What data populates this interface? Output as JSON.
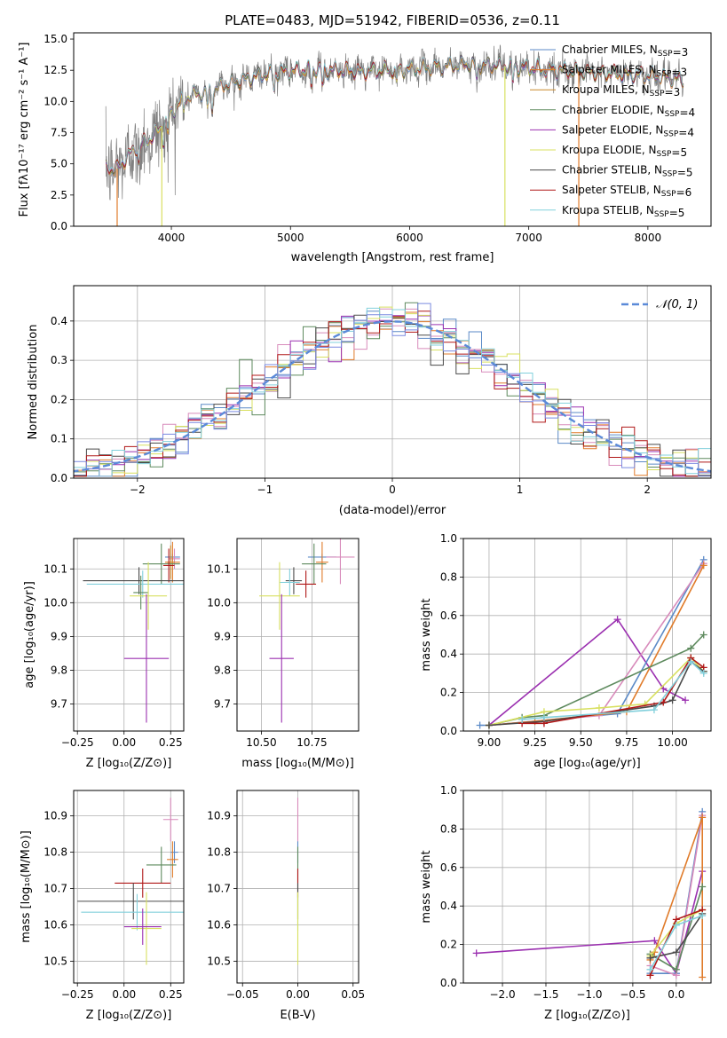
{
  "chart_data": [
    {
      "type": "line",
      "title": "PLATE=0483, MJD=51942, FIBERID=0536, z=0.11",
      "xlabel": "wavelength [Angstrom, rest frame]",
      "ylabel": "Flux [fλ10⁻¹⁷ erg cm⁻² s⁻¹ A⁻¹]",
      "xlim": [
        3180,
        8530
      ],
      "ylim": [
        0,
        15.5
      ],
      "xticks": [
        4000,
        5000,
        6000,
        7000,
        8000
      ],
      "yticks": [
        0.0,
        2.5,
        5.0,
        7.5,
        10.0,
        12.5,
        15.0
      ],
      "data_range": [
        3450,
        8300
      ],
      "continuum": {
        "x": [
          3450,
          3550,
          3650,
          3750,
          3850,
          3950,
          4100,
          4300,
          4500,
          4800,
          5200,
          5600,
          6000,
          6500,
          7000,
          7500,
          8000,
          8300
        ],
        "y": [
          4.6,
          4.6,
          5.8,
          6.6,
          7.2,
          8.4,
          10.3,
          10.8,
          11.5,
          12.2,
          12.6,
          12.4,
          12.6,
          13.0,
          12.7,
          12.3,
          12.1,
          11.7
        ]
      },
      "legend_position": "upper right",
      "series": [
        {
          "name": "Chabrier MILES, N<sub>SSP</sub>=3",
          "color": "#5b8ac7"
        },
        {
          "name": "Salpeter MILES, N<sub>SSP</sub>=3",
          "color": "#e07b2a"
        },
        {
          "name": "Kroupa MILES, N<sub>SSP</sub>=3",
          "color": "#c8892a"
        },
        {
          "name": "Chabrier ELODIE, N<sub>SSP</sub>=4",
          "color": "#5e8a5e"
        },
        {
          "name": "Salpeter ELODIE, N<sub>SSP</sub>=4",
          "color": "#9b30b0"
        },
        {
          "name": "Kroupa ELODIE, N<sub>SSP</sub>=5",
          "color": "#d8e060"
        },
        {
          "name": "Chabrier STELIB, N<sub>SSP</sub>=5",
          "color": "#4a4a4a"
        },
        {
          "name": "Salpeter STELIB, N<sub>SSP</sub>=6",
          "color": "#b01818"
        },
        {
          "name": "Kroupa STELIB, N<sub>SSP</sub>=5",
          "color": "#82d0dc"
        }
      ],
      "observed_color": "#7f7f7f"
    },
    {
      "type": "histogram",
      "xlabel": "(data-model)/error",
      "ylabel": "Normed distribution",
      "xlim": [
        -2.5,
        2.5
      ],
      "ylim": [
        0,
        0.49
      ],
      "xticks": [
        -2,
        -1,
        0,
        1,
        2
      ],
      "yticks": [
        0.0,
        0.1,
        0.2,
        0.3,
        0.4
      ],
      "grid": true,
      "bin_width": 0.1,
      "legend": [
        "𝒩(0, 1)"
      ],
      "legend_position": "upper right",
      "reference_curve": {
        "name": "𝒩(0, 1)",
        "mean": 0,
        "sigma": 1,
        "color": "#5b8ad8",
        "style": "dashed"
      },
      "series_colors": [
        "#5b8ac7",
        "#e07b2a",
        "#d88bbb",
        "#5e8a5e",
        "#9b30b0",
        "#d8e060",
        "#4a4a4a",
        "#b01818",
        "#82d0dc",
        "#7a8ae0"
      ]
    },
    {
      "type": "scatter",
      "xlabel": "Z [log₁₀(Z/Z⊙)]",
      "ylabel": "age  [log₁₀(age/yr)]",
      "xlim": [
        -0.27,
        0.32
      ],
      "ylim": [
        9.62,
        10.19
      ],
      "xticks": [
        -0.25,
        0.0,
        0.25
      ],
      "yticks": [
        9.7,
        9.8,
        9.9,
        10.0,
        10.1
      ],
      "grid": true,
      "points": [
        {
          "x": 0.26,
          "y": 10.135,
          "xerr": 0.04,
          "yerr": 0.01,
          "color": "#5b8ac7"
        },
        {
          "x": 0.27,
          "y": 10.13,
          "xerr": 0.03,
          "yerr": 0.03,
          "color": "#d88bbb"
        },
        {
          "x": 0.26,
          "y": 10.12,
          "xerr": 0.04,
          "yerr": 0.06,
          "color": "#e07b2a"
        },
        {
          "x": 0.25,
          "y": 10.12,
          "xerr": 0.02,
          "yerr": 0.05,
          "color": "#c8892a"
        },
        {
          "x": 0.2,
          "y": 10.115,
          "xerr": 0.1,
          "yerr": 0.06,
          "color": "#5e8a5e"
        },
        {
          "x": 0.24,
          "y": 10.11,
          "xerr": 0.03,
          "yerr": 0.05,
          "color": "#b01818"
        },
        {
          "x": 0.08,
          "y": 10.065,
          "xerr": 0.3,
          "yerr": 0.04,
          "color": "#4a4a4a"
        },
        {
          "x": 0.1,
          "y": 10.055,
          "xerr": 0.3,
          "yerr": 0.04,
          "color": "#82d0dc"
        },
        {
          "x": 0.09,
          "y": 10.03,
          "xerr": 0.04,
          "yerr": 0.05,
          "color": "#5e8a5e"
        },
        {
          "x": 0.13,
          "y": 10.02,
          "xerr": 0.1,
          "yerr": 0.1,
          "color": "#d8e060"
        },
        {
          "x": 0.12,
          "y": 9.835,
          "xerr": 0.12,
          "yerr": 0.19,
          "color": "#9b30b0"
        }
      ]
    },
    {
      "type": "scatter",
      "xlabel": "mass [log₁₀(M/M⊙)]",
      "ylabel": "",
      "xlim": [
        10.38,
        10.98
      ],
      "ylim": [
        9.62,
        10.19
      ],
      "xticks": [
        10.5,
        10.75
      ],
      "yticks": [
        9.7,
        9.8,
        9.9,
        10.0,
        10.1
      ],
      "grid": true,
      "points": [
        {
          "x": 10.8,
          "y": 10.135,
          "xerr": 0.07,
          "yerr": 0.01,
          "color": "#5b8ac7"
        },
        {
          "x": 10.89,
          "y": 10.135,
          "xerr": 0.07,
          "yerr": 0.08,
          "color": "#d88bbb"
        },
        {
          "x": 10.8,
          "y": 10.12,
          "xerr": 0.03,
          "yerr": 0.06,
          "color": "#e07b2a"
        },
        {
          "x": 10.76,
          "y": 10.115,
          "xerr": 0.06,
          "yerr": 0.06,
          "color": "#5e8a5e"
        },
        {
          "x": 10.72,
          "y": 10.055,
          "xerr": 0.05,
          "yerr": 0.04,
          "color": "#b01818"
        },
        {
          "x": 10.66,
          "y": 10.065,
          "xerr": 0.04,
          "yerr": 0.04,
          "color": "#4a4a4a"
        },
        {
          "x": 10.64,
          "y": 10.06,
          "xerr": 0.05,
          "yerr": 0.04,
          "color": "#82d0dc"
        },
        {
          "x": 10.59,
          "y": 10.02,
          "xerr": 0.1,
          "yerr": 0.1,
          "color": "#d8e060"
        },
        {
          "x": 10.6,
          "y": 9.835,
          "xerr": 0.06,
          "yerr": 0.19,
          "color": "#9b30b0"
        }
      ]
    },
    {
      "type": "line",
      "xlabel": "age  [log₁₀(age/yr)]",
      "ylabel": "mass weight",
      "xlim": [
        8.86,
        10.21
      ],
      "ylim": [
        0,
        1.0
      ],
      "xticks": [
        9.0,
        9.25,
        9.5,
        9.75,
        10.0
      ],
      "yticks": [
        0.0,
        0.2,
        0.4,
        0.6,
        0.8,
        1.0
      ],
      "grid": true,
      "series": [
        {
          "color": "#9b30b0",
          "x": [
            9.0,
            9.7,
            9.95,
            10.07
          ],
          "y": [
            0.03,
            0.58,
            0.22,
            0.16
          ]
        },
        {
          "color": "#5b8ac7",
          "x": [
            8.95,
            9.0,
            9.7,
            10.17
          ],
          "y": [
            0.03,
            0.03,
            0.09,
            0.89
          ]
        },
        {
          "color": "#d88bbb",
          "x": [
            9.0,
            9.6,
            10.17
          ],
          "y": [
            0.03,
            0.08,
            0.87
          ]
        },
        {
          "color": "#e07b2a",
          "x": [
            9.0,
            9.25,
            9.75,
            10.17
          ],
          "y": [
            0.03,
            0.05,
            0.1,
            0.86
          ]
        },
        {
          "color": "#5e8a5e",
          "x": [
            9.0,
            9.18,
            9.3,
            10.1,
            10.17
          ],
          "y": [
            0.03,
            0.07,
            0.08,
            0.43,
            0.5
          ]
        },
        {
          "color": "#d8e060",
          "x": [
            9.0,
            9.3,
            9.6,
            9.85,
            10.1,
            10.17
          ],
          "y": [
            0.03,
            0.1,
            0.12,
            0.14,
            0.38,
            0.31
          ]
        },
        {
          "color": "#4a4a4a",
          "x": [
            9.0,
            9.3,
            9.9,
            10.0,
            10.1,
            10.17
          ],
          "y": [
            0.03,
            0.05,
            0.13,
            0.16,
            0.36,
            0.31
          ]
        },
        {
          "color": "#b01818",
          "x": [
            9.18,
            9.3,
            9.95,
            10.1,
            10.17
          ],
          "y": [
            0.04,
            0.04,
            0.15,
            0.38,
            0.33
          ]
        },
        {
          "color": "#82d0dc",
          "x": [
            9.18,
            9.3,
            9.9,
            10.1,
            10.17
          ],
          "y": [
            0.06,
            0.07,
            0.11,
            0.36,
            0.3
          ]
        }
      ]
    },
    {
      "type": "scatter",
      "xlabel": "Z [log₁₀(Z/Z⊙)]",
      "ylabel": "mass [log₁₀(M/M⊙)]",
      "xlim": [
        -0.27,
        0.32
      ],
      "ylim": [
        10.44,
        10.97
      ],
      "xticks": [
        -0.25,
        0.0,
        0.25
      ],
      "yticks": [
        10.5,
        10.6,
        10.7,
        10.8,
        10.9
      ],
      "grid": true,
      "points": [
        {
          "x": 0.27,
          "y": 10.8,
          "xerr": 0.02,
          "yerr": 0.03,
          "color": "#5b8ac7"
        },
        {
          "x": 0.25,
          "y": 10.89,
          "xerr": 0.04,
          "yerr": 0.06,
          "color": "#d88bbb"
        },
        {
          "x": 0.26,
          "y": 10.78,
          "xerr": 0.03,
          "yerr": 0.05,
          "color": "#e07b2a"
        },
        {
          "x": 0.2,
          "y": 10.765,
          "xerr": 0.08,
          "yerr": 0.05,
          "color": "#5e8a5e"
        },
        {
          "x": 0.1,
          "y": 10.715,
          "xerr": 0.15,
          "yerr": 0.04,
          "color": "#b01818"
        },
        {
          "x": 0.05,
          "y": 10.665,
          "xerr": 0.3,
          "yerr": 0.05,
          "color": "#4a4a4a"
        },
        {
          "x": 0.07,
          "y": 10.635,
          "xerr": 0.3,
          "yerr": 0.05,
          "color": "#82d0dc"
        },
        {
          "x": 0.12,
          "y": 10.59,
          "xerr": 0.08,
          "yerr": 0.1,
          "color": "#d8e060"
        },
        {
          "x": 0.1,
          "y": 10.595,
          "xerr": 0.1,
          "yerr": 0.05,
          "color": "#9b30b0"
        }
      ]
    },
    {
      "type": "scatter",
      "xlabel": "E(B-V)",
      "ylabel": "",
      "xlim": [
        -0.055,
        0.055
      ],
      "ylim": [
        10.44,
        10.97
      ],
      "xticks": [
        -0.05,
        0.0,
        0.05
      ],
      "yticks": [
        10.5,
        10.6,
        10.7,
        10.8,
        10.9
      ],
      "grid": true,
      "points": [
        {
          "x": 0.0,
          "y": 10.89,
          "xerr": 0,
          "yerr": 0.06,
          "color": "#d88bbb"
        },
        {
          "x": 0.0,
          "y": 10.8,
          "xerr": 0,
          "yerr": 0.03,
          "color": "#5b8ac7"
        },
        {
          "x": 0.0,
          "y": 10.765,
          "xerr": 0,
          "yerr": 0.05,
          "color": "#5e8a5e"
        },
        {
          "x": 0.0,
          "y": 10.715,
          "xerr": 0,
          "yerr": 0.04,
          "color": "#b01818"
        },
        {
          "x": 0.0,
          "y": 10.665,
          "xerr": 0,
          "yerr": 0.05,
          "color": "#4a4a4a"
        },
        {
          "x": 0.0,
          "y": 10.635,
          "xerr": 0,
          "yerr": 0.05,
          "color": "#82d0dc"
        },
        {
          "x": 0.0,
          "y": 10.59,
          "xerr": 0,
          "yerr": 0.1,
          "color": "#d8e060"
        }
      ]
    },
    {
      "type": "line",
      "xlabel": "Z [log₁₀(Z/Z⊙)]",
      "ylabel": "mass weight",
      "xlim": [
        -2.45,
        0.4
      ],
      "ylim": [
        0,
        1.0
      ],
      "xticks": [
        -2.0,
        -1.5,
        -1.0,
        -0.5,
        0.0
      ],
      "yticks": [
        0.0,
        0.2,
        0.4,
        0.6,
        0.8,
        1.0
      ],
      "grid": true,
      "series": [
        {
          "color": "#9b30b0",
          "x": [
            -2.3,
            -0.25,
            0.0,
            0.3
          ],
          "y": [
            0.155,
            0.22,
            0.05,
            0.58
          ]
        },
        {
          "color": "#5b8ac7",
          "x": [
            -0.3,
            0.0,
            0.3
          ],
          "y": [
            0.05,
            0.05,
            0.89
          ]
        },
        {
          "color": "#d88bbb",
          "x": [
            -0.3,
            0.0,
            0.3
          ],
          "y": [
            0.09,
            0.04,
            0.87
          ]
        },
        {
          "color": "#e07b2a",
          "x": [
            -0.3,
            -0.25,
            0.3,
            0.3
          ],
          "y": [
            0.12,
            0.16,
            0.86,
            0.03
          ]
        },
        {
          "color": "#5e8a5e",
          "x": [
            -0.3,
            0.0,
            0.3
          ],
          "y": [
            0.15,
            0.07,
            0.5
          ]
        },
        {
          "color": "#d8e060",
          "x": [
            -0.3,
            0.0,
            0.3
          ],
          "y": [
            0.14,
            0.31,
            0.38
          ]
        },
        {
          "color": "#4a4a4a",
          "x": [
            -0.3,
            0.0,
            0.3
          ],
          "y": [
            0.13,
            0.16,
            0.36
          ]
        },
        {
          "color": "#b01818",
          "x": [
            -0.3,
            0.0,
            0.3
          ],
          "y": [
            0.04,
            0.33,
            0.38
          ]
        },
        {
          "color": "#82d0dc",
          "x": [
            -0.3,
            0.0,
            0.3
          ],
          "y": [
            0.07,
            0.3,
            0.35
          ]
        }
      ]
    }
  ]
}
